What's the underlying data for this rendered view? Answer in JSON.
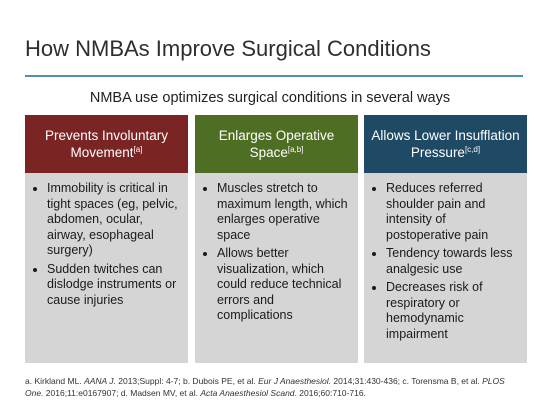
{
  "title": "How NMBAs Improve Surgical Conditions",
  "subtitle": "NMBA use optimizes surgical conditions in several ways",
  "columns": [
    {
      "heading": "Prevents Involuntary Movement",
      "ref": "[a]",
      "color": "#7a2523",
      "bullets": [
        "Immobility is critical in tight spaces (eg, pelvic, abdomen, ocular, airway, esophageal surgery)",
        "Sudden twitches can dislodge instruments or cause injuries"
      ]
    },
    {
      "heading": "Enlarges Operative Space",
      "ref": "[a,b]",
      "color": "#4e6e23",
      "bullets": [
        "Muscles stretch to maximum length, which enlarges operative space",
        "Allows better visualization, which could reduce technical errors and complications"
      ]
    },
    {
      "heading": "Allows Lower Insufflation Pressure",
      "ref": "[c,d]",
      "color": "#1f4a66",
      "bullets": [
        "Reduces referred shoulder pain and intensity of postoperative pain",
        "Tendency towards less analgesic use",
        "Decreases risk of respiratory or hemodynamic impairment"
      ]
    }
  ],
  "references": {
    "a1": "a. Kirkland ML. ",
    "a_journal": "AANA J.",
    "a2": " 2013;Suppl: 4-7; b. Dubois PE, et al. ",
    "b_journal": "Eur J Anaesthesiol.",
    "b2": " 2014;31:430-436; c. Torensma B, et al. ",
    "c_journal": "PLOS One.",
    "c2": " 2016;11:e0167907; d. Madsen MV, et al. ",
    "d_journal": "Acta Anaesthesiol Scand.",
    "d2": " 2016;60:710-716."
  }
}
